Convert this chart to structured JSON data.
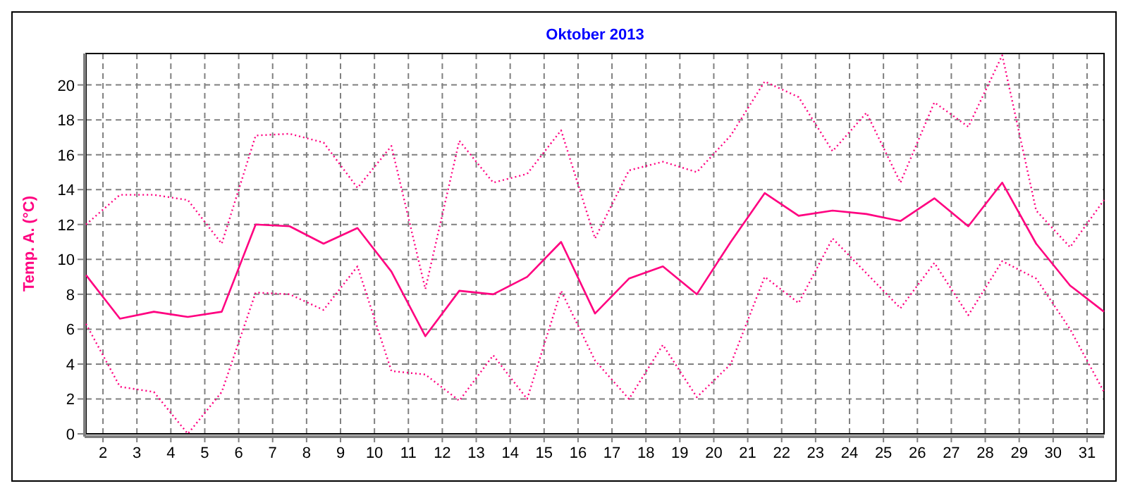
{
  "chart_data": {
    "type": "line",
    "title": "Oktober 2013",
    "ylabel": "Temp. A. (°C)",
    "x": [
      1.5,
      2.5,
      3.5,
      4.5,
      5.5,
      6.5,
      7.5,
      8.5,
      9.5,
      10.5,
      11.5,
      12.5,
      13.5,
      14.5,
      15.5,
      16.5,
      17.5,
      18.5,
      19.5,
      20.5,
      21.5,
      22.5,
      23.5,
      24.5,
      25.5,
      26.5,
      27.5,
      28.5,
      29.5,
      30.5,
      31.5
    ],
    "series": [
      {
        "color": "#ff0080",
        "line_style": "dotted",
        "values": [
          12.0,
          13.7,
          13.7,
          13.4,
          10.9,
          17.1,
          17.2,
          16.7,
          14.1,
          16.5,
          8.3,
          16.8,
          14.4,
          14.9,
          17.4,
          11.2,
          15.1,
          15.6,
          15.0,
          17.1,
          20.2,
          19.3,
          16.2,
          18.4,
          14.4,
          19.0,
          17.6,
          21.7,
          12.8,
          10.7,
          13.4
        ]
      },
      {
        "color": "#ff0080",
        "line_style": "solid",
        "values": [
          9.1,
          6.6,
          7.0,
          6.7,
          7.0,
          12.0,
          11.9,
          10.9,
          11.8,
          9.3,
          5.6,
          8.2,
          8.0,
          9.0,
          11.0,
          6.9,
          8.9,
          9.6,
          8.0,
          11.0,
          13.8,
          12.5,
          12.8,
          12.6,
          12.2,
          13.5,
          11.9,
          14.4,
          10.9,
          8.5,
          7.0
        ]
      },
      {
        "color": "#ff0080",
        "line_style": "dotted",
        "values": [
          6.3,
          2.7,
          2.4,
          0.0,
          2.4,
          8.1,
          8.0,
          7.1,
          9.6,
          3.6,
          3.4,
          1.9,
          4.5,
          2.0,
          8.2,
          4.2,
          2.0,
          5.1,
          2.1,
          4.0,
          9.0,
          7.5,
          11.2,
          9.2,
          7.2,
          9.8,
          6.8,
          9.9,
          8.9,
          6.0,
          2.4
        ]
      }
    ],
    "xlim": [
      1.5,
      31.5
    ],
    "xticks": [
      2,
      3,
      4,
      5,
      6,
      7,
      8,
      9,
      10,
      11,
      12,
      13,
      14,
      15,
      16,
      17,
      18,
      19,
      20,
      21,
      22,
      23,
      24,
      25,
      26,
      27,
      28,
      29,
      30,
      31
    ],
    "ylim": [
      0,
      21.8
    ],
    "yticks": [
      0,
      2,
      4,
      6,
      8,
      10,
      12,
      14,
      16,
      18,
      20
    ],
    "grid": true,
    "marker": "none"
  }
}
